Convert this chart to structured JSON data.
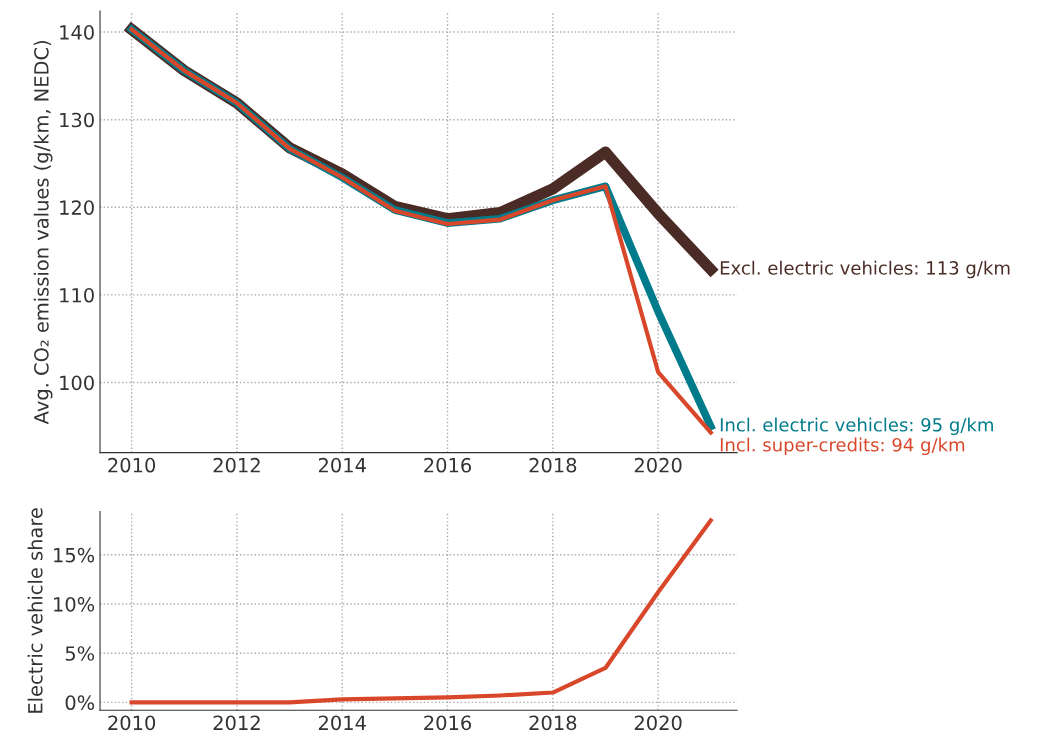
{
  "chart_data": [
    {
      "type": "line",
      "ylabel": "Avg. CO₂ emission values (g/km, NEDC)",
      "x": [
        2010,
        2011,
        2012,
        2013,
        2014,
        2015,
        2016,
        2017,
        2018,
        2019,
        2020,
        2021
      ],
      "series": [
        {
          "name": "Excl. electric vehicles: 113 g/km",
          "color": "#4a2b25",
          "values": [
            140.3,
            135.6,
            131.9,
            126.8,
            123.8,
            120.1,
            118.7,
            119.4,
            122.1,
            126.3,
            119.3,
            112.9
          ]
        },
        {
          "name": "Incl. electric vehicles: 95 g/km",
          "color": "#007b8c",
          "values": [
            140.3,
            135.6,
            131.9,
            126.7,
            123.4,
            119.7,
            118.2,
            118.7,
            120.8,
            122.4,
            108.1,
            95.0
          ]
        },
        {
          "name": "Incl. super-credits: 94 g/km",
          "color": "#d9472b",
          "values": [
            140.3,
            135.6,
            131.9,
            126.7,
            123.4,
            119.6,
            118.1,
            118.6,
            120.8,
            122.4,
            101.2,
            94.3
          ]
        }
      ],
      "xlim": [
        2009.4,
        2021.5
      ],
      "xticks": [
        2010,
        2012,
        2014,
        2016,
        2018,
        2020
      ],
      "ylim": [
        92,
        142.4
      ],
      "yticks": [
        100,
        110,
        120,
        130,
        140
      ],
      "grid": true,
      "legend": false,
      "marker": "none",
      "line_style": "solid"
    },
    {
      "type": "line",
      "ylabel": "Electric vehicle share",
      "x": [
        2010,
        2011,
        2012,
        2013,
        2014,
        2015,
        2016,
        2017,
        2018,
        2019,
        2020,
        2021
      ],
      "series": [
        {
          "color": "#d9472b",
          "values": [
            0,
            0,
            0,
            0,
            0.3,
            0.4,
            0.5,
            0.7,
            1.0,
            3.5,
            11.2,
            18.5
          ]
        }
      ],
      "xlim": [
        2009.4,
        2021.5
      ],
      "xticks": [
        2010,
        2012,
        2014,
        2016,
        2018,
        2020
      ],
      "ylim": [
        -0.8,
        19.4
      ],
      "yticks": [
        {
          "value": 0,
          "label": "0%"
        },
        {
          "value": 5,
          "label": "5%"
        },
        {
          "value": 10,
          "label": "10%"
        },
        {
          "value": 15,
          "label": "15%"
        }
      ],
      "grid": true,
      "legend": false,
      "marker": "none",
      "line_style": "solid"
    }
  ]
}
